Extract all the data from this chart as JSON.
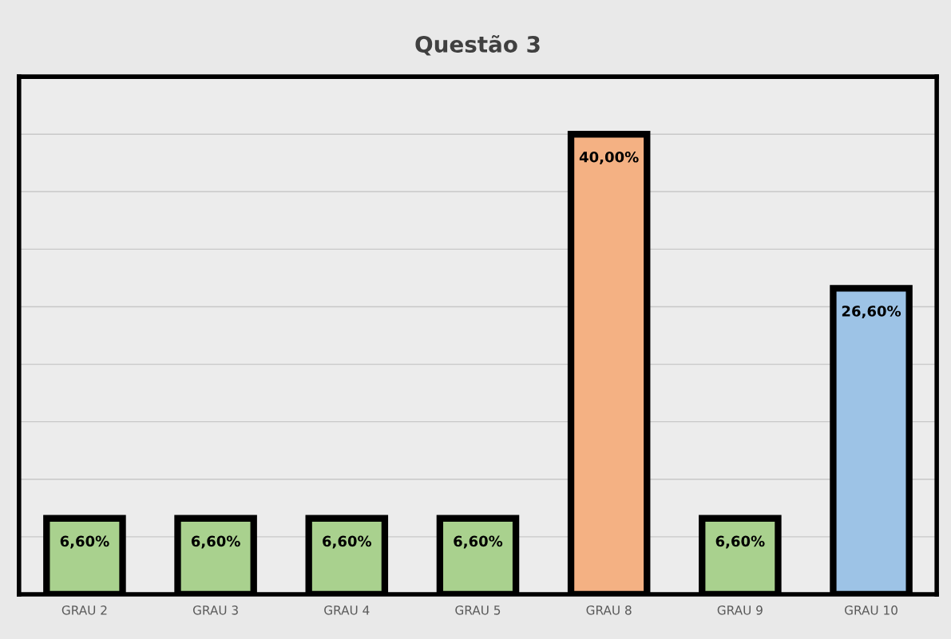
{
  "chart_data": {
    "type": "bar",
    "title": "Questão 3",
    "categories": [
      "GRAU 2",
      "GRAU 3",
      "GRAU 4",
      "GRAU 5",
      "GRAU 8",
      "GRAU 9",
      "GRAU 10"
    ],
    "values": [
      6.6,
      6.6,
      6.6,
      6.6,
      40,
      6.6,
      26.6
    ],
    "value_labels": [
      "6,60%",
      "6,60%",
      "6,60%",
      "6,60%",
      "40,00%",
      "6,60%",
      "26,60%"
    ],
    "colors": [
      "#a9d18e",
      "#a9d18e",
      "#a9d18e",
      "#a9d18e",
      "#f4b183",
      "#a9d18e",
      "#9dc3e6"
    ],
    "ylim": [
      0,
      45
    ],
    "yticks": [
      {
        "value": 0,
        "label": null
      },
      {
        "value": 5,
        "label": null
      },
      {
        "value": 10,
        "label": null
      },
      {
        "value": 15,
        "label": null
      },
      {
        "value": 20,
        "label": null
      },
      {
        "value": 25,
        "label": null
      },
      {
        "value": 30,
        "label": null
      },
      {
        "value": 35,
        "label": null
      },
      {
        "value": 40,
        "label": null
      },
      {
        "value": 45,
        "label": null
      }
    ],
    "tick_labels": "x",
    "grid": "y"
  }
}
